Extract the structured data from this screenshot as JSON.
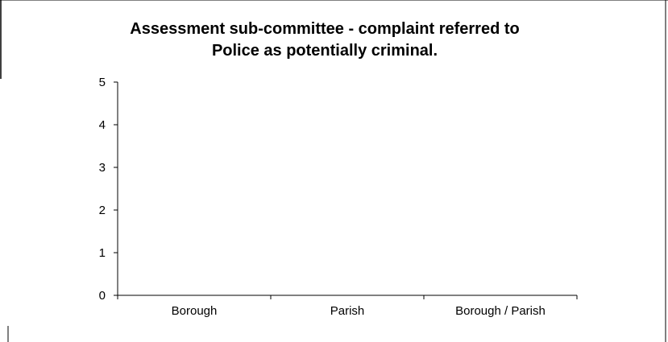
{
  "chart_data": {
    "type": "bar",
    "title_lines": [
      "Assessment sub-committee - complaint referred to",
      "Police as potentially criminal."
    ],
    "categories": [
      "Borough",
      "Parish",
      "Borough / Parish"
    ],
    "values": [
      0,
      0,
      0
    ],
    "y_ticks": [
      "0",
      "1",
      "2",
      "3",
      "4",
      "5"
    ],
    "ylim": [
      0,
      5
    ],
    "xlabel": "",
    "ylabel": "",
    "grid": false,
    "legend": "none",
    "bar_color": "#9999ff",
    "axis_color": "#000000"
  }
}
